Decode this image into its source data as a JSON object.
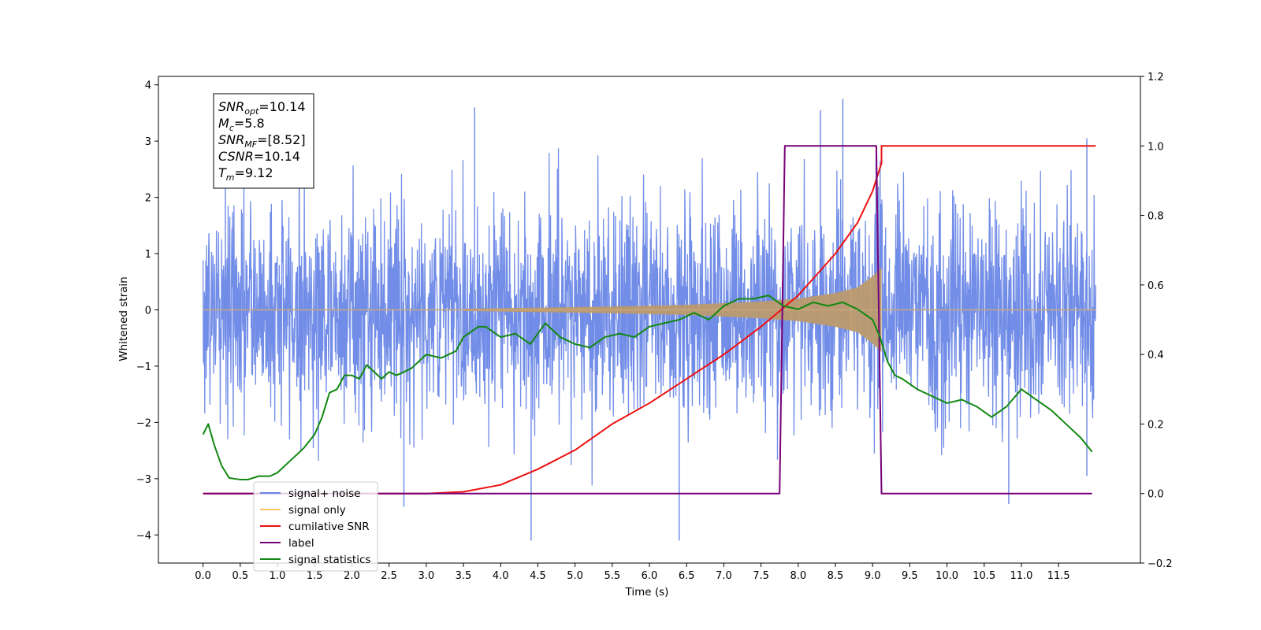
{
  "chart_data": {
    "type": "line",
    "xlabel": "Time (s)",
    "ylabel": "Whitened strain",
    "xlim": [
      -0.6,
      12.6
    ],
    "ylim": [
      -4.5,
      4.15
    ],
    "y2lim": [
      -0.2,
      1.2
    ],
    "x_ticks": [
      "0.0",
      "0.5",
      "1.0",
      "1.5",
      "2.0",
      "2.5",
      "3.0",
      "3.5",
      "4.0",
      "4.5",
      "5.0",
      "5.5",
      "6.0",
      "6.5",
      "7.0",
      "7.5",
      "8.0",
      "8.5",
      "9.0",
      "9.5",
      "10.0",
      "10.5",
      "11.0",
      "11.5"
    ],
    "y_ticks": [
      "4",
      "3",
      "2",
      "1",
      "0",
      "−1",
      "−2",
      "−3",
      "−4"
    ],
    "y2_ticks": [
      "1.2",
      "1.0",
      "0.8",
      "0.6",
      "0.4",
      "0.2",
      "0.0",
      "−0.2"
    ],
    "legend_position": "lower-left",
    "annotation": [
      {
        "base": "SNR",
        "sub": "opt",
        "value": "=10.14"
      },
      {
        "base": "M",
        "sub": "c",
        "value": "=5.8"
      },
      {
        "base": "SNR",
        "sub": "MF",
        "value": "=[8.52]"
      },
      {
        "base": "CSNR",
        "sub": "",
        "value": "=10.14"
      },
      {
        "base": "T",
        "sub": "m",
        "value": "=9.12"
      }
    ],
    "series": [
      {
        "name": "signal+ noise",
        "color": "#6a87e6",
        "axis": "left",
        "style": "noise",
        "x_range": [
          0.0,
          12.0
        ],
        "noise_std": 0.95,
        "extreme_spikes": [
          {
            "x": 4.41,
            "y": -4.1
          },
          {
            "x": 6.4,
            "y": -4.1
          },
          {
            "x": 8.6,
            "y": 3.75
          },
          {
            "x": 10.83,
            "y": -3.45
          },
          {
            "x": 2.7,
            "y": -3.5
          },
          {
            "x": 0.3,
            "y": 3.35
          },
          {
            "x": 3.65,
            "y": 3.6
          },
          {
            "x": 8.3,
            "y": 3.55
          },
          {
            "x": 11.88,
            "y": 3.05
          },
          {
            "x": 11.88,
            "y": -2.95
          }
        ]
      },
      {
        "name": "signal only",
        "color": "#f5c56a",
        "axis": "left",
        "style": "chirp",
        "x_range": [
          0.0,
          12.0
        ],
        "chirp_start": 3.5,
        "merger": 9.12,
        "amplitude_envelope": [
          [
            3.5,
            0.02
          ],
          [
            4.5,
            0.04
          ],
          [
            5.5,
            0.06
          ],
          [
            6.5,
            0.09
          ],
          [
            7.5,
            0.15
          ],
          [
            8.0,
            0.2
          ],
          [
            8.5,
            0.3
          ],
          [
            8.8,
            0.4
          ],
          [
            9.0,
            0.6
          ],
          [
            9.12,
            0.75
          ]
        ]
      },
      {
        "name": "cumilative SNR",
        "color": "#ee1111",
        "axis": "right",
        "x": [
          0.0,
          2.5,
          3.0,
          3.5,
          4.0,
          4.5,
          5.0,
          5.5,
          6.0,
          6.5,
          7.0,
          7.5,
          8.0,
          8.5,
          8.8,
          9.0,
          9.12,
          9.12,
          12.0
        ],
        "y": [
          0.0,
          0.0,
          0.0,
          0.005,
          0.025,
          0.07,
          0.125,
          0.2,
          0.26,
          0.33,
          0.4,
          0.48,
          0.57,
          0.69,
          0.78,
          0.87,
          0.95,
          1.0,
          1.0
        ]
      },
      {
        "name": "label",
        "color": "#770077",
        "axis": "right",
        "x": [
          0.0,
          7.75,
          7.82,
          9.05,
          9.12,
          11.95
        ],
        "y": [
          0.0,
          0.0,
          1.0,
          1.0,
          0.0,
          0.0
        ]
      },
      {
        "name": "signal statistics",
        "color": "#118811",
        "axis": "right",
        "x": [
          0.0,
          0.07,
          0.15,
          0.25,
          0.35,
          0.5,
          0.6,
          0.75,
          0.9,
          1.0,
          1.2,
          1.35,
          1.5,
          1.6,
          1.7,
          1.8,
          1.9,
          2.0,
          2.1,
          2.2,
          2.3,
          2.4,
          2.5,
          2.6,
          2.8,
          3.0,
          3.2,
          3.4,
          3.5,
          3.7,
          3.8,
          4.0,
          4.2,
          4.4,
          4.6,
          4.8,
          5.0,
          5.2,
          5.4,
          5.6,
          5.8,
          6.0,
          6.2,
          6.4,
          6.6,
          6.8,
          7.0,
          7.2,
          7.4,
          7.6,
          7.8,
          8.0,
          8.2,
          8.4,
          8.6,
          8.8,
          9.0,
          9.1,
          9.2,
          9.3,
          9.4,
          9.6,
          9.8,
          10.0,
          10.2,
          10.4,
          10.6,
          10.8,
          11.0,
          11.2,
          11.4,
          11.6,
          11.8,
          11.95
        ],
        "y": [
          0.17,
          0.2,
          0.14,
          0.08,
          0.045,
          0.04,
          0.04,
          0.05,
          0.05,
          0.06,
          0.1,
          0.13,
          0.17,
          0.22,
          0.29,
          0.3,
          0.34,
          0.34,
          0.33,
          0.37,
          0.35,
          0.33,
          0.35,
          0.34,
          0.36,
          0.4,
          0.39,
          0.41,
          0.45,
          0.48,
          0.48,
          0.45,
          0.46,
          0.43,
          0.49,
          0.45,
          0.43,
          0.42,
          0.45,
          0.46,
          0.45,
          0.48,
          0.49,
          0.5,
          0.52,
          0.5,
          0.54,
          0.56,
          0.56,
          0.57,
          0.54,
          0.53,
          0.55,
          0.54,
          0.55,
          0.53,
          0.5,
          0.45,
          0.38,
          0.34,
          0.33,
          0.3,
          0.28,
          0.26,
          0.27,
          0.25,
          0.22,
          0.25,
          0.3,
          0.27,
          0.24,
          0.2,
          0.16,
          0.12
        ]
      }
    ]
  }
}
